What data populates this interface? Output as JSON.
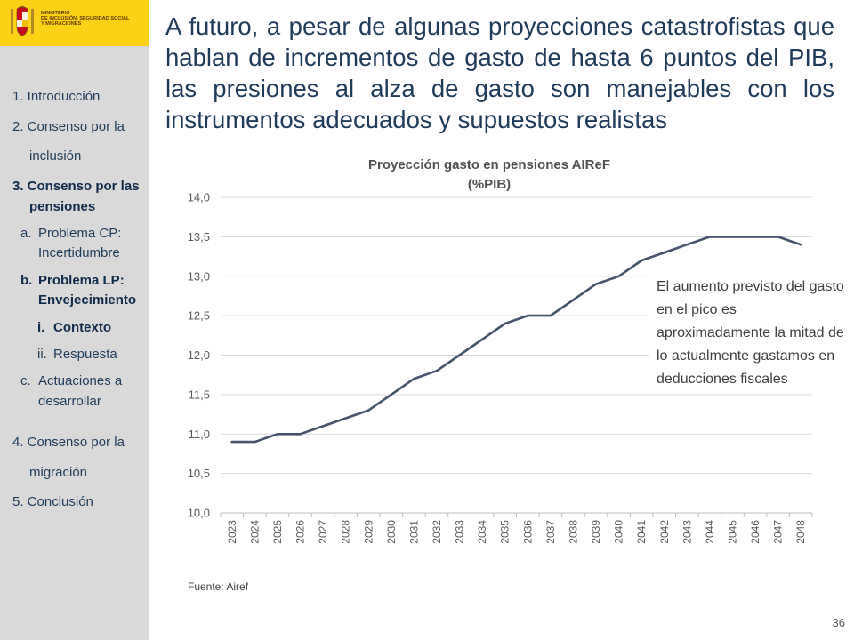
{
  "header": {
    "ministry_lines": [
      "MINISTERIO",
      "DE INCLUSIÓN, SEGURIDAD SOCIAL",
      "Y MIGRACIONES"
    ],
    "band_color": "#fcd116"
  },
  "sidebar": {
    "items": [
      "1. Introducción",
      "2. Consenso por la",
      "inclusión",
      "3. Consenso por las",
      "pensiones",
      "a.",
      "Problema CP:",
      "Incertidumbre",
      "b.",
      "Problema LP:",
      "Envejecimiento",
      "i.",
      "Contexto",
      "ii.",
      "Respuesta",
      "c.",
      "Actuaciones a",
      "desarrollar",
      "4. Consenso por la",
      "migración",
      "5. Conclusión"
    ]
  },
  "slide": {
    "title": "A futuro, a pesar de algunas proyecciones catastrofistas que hablan de incrementos de gasto de hasta 6 puntos del PIB, las presiones al alza de gasto son manejables con los instrumentos adecuados y supuestos realistas",
    "annotation": "El aumento previsto del gasto  en el pico es aproximadamente la mitad de lo actualmente gastamos en deducciones fiscales",
    "source": "Fuente: Airef",
    "page_number": "36"
  },
  "chart_data": {
    "type": "line",
    "title": "Proyección gasto en pensiones AIReF",
    "subtitle": "(%PIB)",
    "categories": [
      "2023",
      "2024",
      "2025",
      "2026",
      "2027",
      "2028",
      "2029",
      "2030",
      "2031",
      "2032",
      "2033",
      "2034",
      "2035",
      "2036",
      "2037",
      "2038",
      "2039",
      "2040",
      "2041",
      "2042",
      "2043",
      "2044",
      "2045",
      "2046",
      "2047",
      "2048"
    ],
    "series": [
      {
        "values": [
          10.9,
          10.9,
          11.0,
          11.0,
          11.1,
          11.2,
          11.3,
          11.5,
          11.7,
          11.8,
          12.0,
          12.2,
          12.4,
          12.5,
          12.5,
          12.7,
          12.9,
          13.0,
          13.2,
          13.3,
          13.4,
          13.5,
          13.5,
          13.5,
          13.5,
          13.4
        ]
      }
    ],
    "ylim": [
      10.0,
      14.0
    ],
    "yticks": [
      "10,0",
      "10,5",
      "11,0",
      "11,5",
      "12,0",
      "12,5",
      "13,0",
      "13,5",
      "14,0"
    ],
    "grid": true,
    "line_color": "#44546a"
  }
}
